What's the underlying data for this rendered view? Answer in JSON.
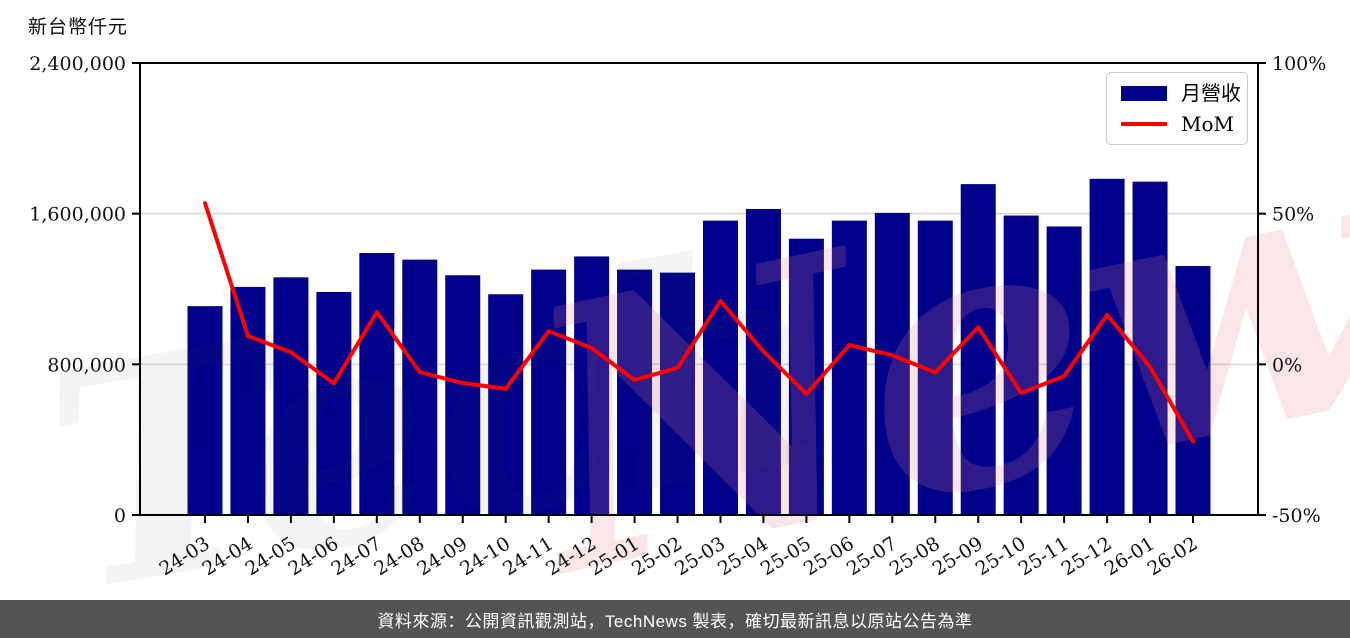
{
  "watermark": {
    "part1": "Tech",
    "part2": "News",
    "gray": "rgba(60,60,60,0.06)",
    "pink": "rgba(228,130,140,0.20)"
  },
  "footer": {
    "text": "資料來源：公開資訊觀測站，TechNews 製表，確切最新訊息以原站公告為準",
    "background": "#545454",
    "text_color": "#ffffff"
  },
  "chart_data": {
    "type": "bar",
    "title": "",
    "categories": [
      "24-03",
      "24-04",
      "24-05",
      "24-06",
      "24-07",
      "24-08",
      "24-09",
      "24-10",
      "24-11",
      "24-12",
      "25-01",
      "25-02",
      "25-03",
      "25-04",
      "25-05",
      "25-06",
      "25-07",
      "25-08",
      "25-09",
      "25-10",
      "25-11",
      "25-12",
      "26-01",
      "26-02"
    ],
    "series": [
      {
        "name": "月營收",
        "type": "bar",
        "color": "#00008b",
        "yaxis": "left",
        "values": [
          1109000,
          1211000,
          1262000,
          1184000,
          1391000,
          1356000,
          1273000,
          1172000,
          1303000,
          1373000,
          1303000,
          1287000,
          1563000,
          1625000,
          1467000,
          1563000,
          1604000,
          1563000,
          1757000,
          1590000,
          1532000,
          1785000,
          1770000,
          1322000
        ]
      },
      {
        "name": "MoM",
        "type": "line",
        "color": "#ff0000",
        "yaxis": "right",
        "values": [
          53.5,
          9.4,
          4.0,
          -6.3,
          17.3,
          -2.6,
          -6.2,
          -8.1,
          11.0,
          5.4,
          -5.2,
          -1.2,
          21.0,
          4.3,
          -9.8,
          6.4,
          3.0,
          -2.7,
          12.3,
          -9.5,
          -3.9,
          16.4,
          -0.8,
          -25.6
        ]
      }
    ],
    "left_axis": {
      "label": "新台幣仟元",
      "unit": "新台幣仟元",
      "range": [
        0,
        2400000
      ],
      "tick_values": [
        0,
        800000,
        1600000,
        2400000
      ],
      "ticks": [
        "0",
        "800,000",
        "1,600,000",
        "2,400,000"
      ]
    },
    "right_axis": {
      "range": [
        -50,
        100
      ],
      "tick_values": [
        -50,
        0,
        50,
        100
      ],
      "ticks": [
        "-50%",
        "0%",
        "50%",
        "100%"
      ],
      "unit": "%"
    },
    "grid": "horizontal",
    "grid_color": "#d8d8d8",
    "legend_position": "top-right",
    "x_label_rotation": -32
  }
}
